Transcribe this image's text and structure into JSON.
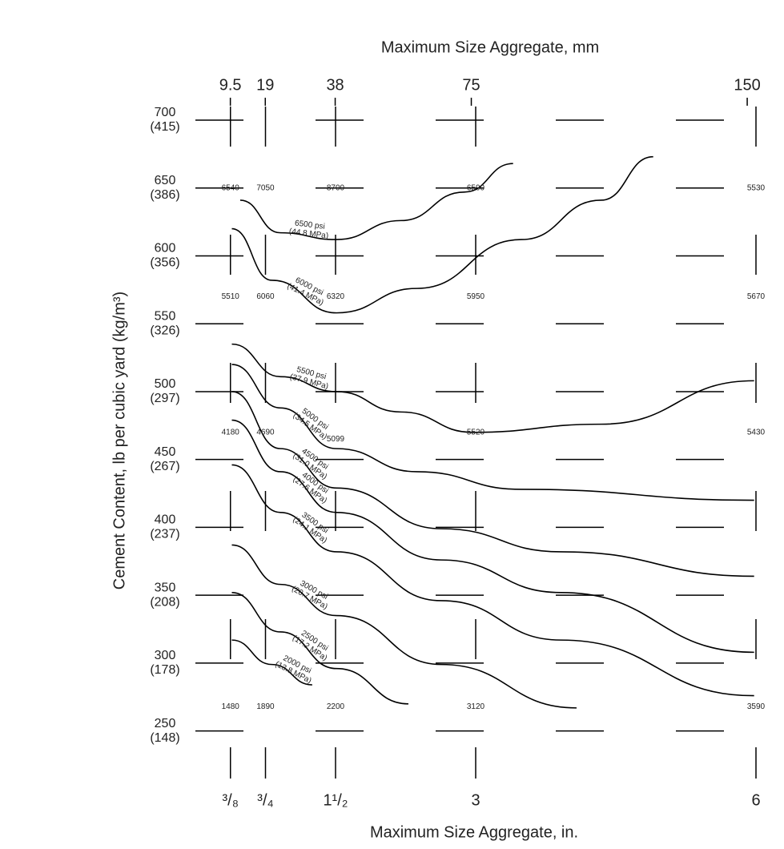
{
  "chart_data": {
    "type": "line",
    "x_label": "Maximum Size Aggregate, in.",
    "x2_label": "Maximum Size Aggregate, mm",
    "y_label": "Cement Content, lb per cubic yard (kg/m³)",
    "xlim": [
      0,
      6.3
    ],
    "xticks": [
      {
        "value": 0.375,
        "label": "³/₈"
      },
      {
        "value": 0.75,
        "label": "³/₄"
      },
      {
        "value": 1.5,
        "label": "1¹/₂"
      },
      3,
      6
    ],
    "x2lim": [
      0,
      160
    ],
    "x2ticks": [
      9.5,
      19,
      38,
      75,
      150
    ],
    "ylim": [
      215,
      710
    ],
    "yticks": [
      250,
      300,
      350,
      400,
      450,
      500,
      550,
      600,
      650,
      700
    ],
    "ytick_secondary_labels": [
      "(148)",
      "(178)",
      "(208)",
      "(237)",
      "(267)",
      "(297)",
      "(326)",
      "(356)",
      "(386)",
      "(415)"
    ],
    "grid": true,
    "color": "#000000",
    "series": [
      {
        "name": "6500 psi",
        "mpa": "(44.8 MPa)",
        "x": [
          0.48,
          0.91,
          1.51,
          2.2,
          2.88,
          3.4
        ],
        "values": [
          641,
          617,
          612,
          626,
          647,
          668
        ]
      },
      {
        "name": "6000 psi",
        "mpa": "(41.4 MPa)",
        "x": [
          0.39,
          0.82,
          1.51,
          2.37,
          3.49,
          4.34,
          4.9
        ],
        "values": [
          620,
          582,
          558,
          576,
          612,
          641,
          673
        ]
      },
      {
        "name": "5500 psi",
        "mpa": "(37.9 MPa)",
        "x": [
          0.39,
          0.91,
          1.51,
          2.2,
          2.97,
          4.34,
          5.98
        ],
        "values": [
          535,
          511,
          500,
          485,
          470,
          476,
          508
        ]
      },
      {
        "name": "5000 psi",
        "mpa": "(34.5 MPa)",
        "x": [
          0.39,
          0.91,
          1.51,
          2.37,
          3.49,
          5.98
        ],
        "values": [
          520,
          488,
          458,
          441,
          428,
          420
        ]
      },
      {
        "name": "4500 psi",
        "mpa": "(31.0 MPa)",
        "x": [
          0.39,
          0.91,
          1.51,
          2.63,
          3.91,
          5.98
        ],
        "values": [
          500,
          458,
          429,
          399,
          382,
          364
        ]
      },
      {
        "name": "4000 psi",
        "mpa": "(27.6 MPa)",
        "x": [
          0.39,
          0.91,
          1.51,
          2.63,
          3.91,
          5.98
        ],
        "values": [
          479,
          441,
          411,
          376,
          352,
          308
        ]
      },
      {
        "name": "3500 psi",
        "mpa": "(24.1 MPa)",
        "x": [
          0.39,
          0.91,
          1.51,
          2.63,
          3.91,
          5.98
        ],
        "values": [
          446,
          411,
          382,
          346,
          317,
          276
        ]
      },
      {
        "name": "3000 psi",
        "mpa": "(20.7 MPa)",
        "x": [
          0.39,
          0.91,
          1.51,
          2.63,
          4.08
        ],
        "values": [
          387,
          358,
          335,
          299,
          267
        ]
      },
      {
        "name": "2500 psi",
        "mpa": "(17.2 MPa)",
        "x": [
          0.39,
          0.91,
          1.51,
          2.28
        ],
        "values": [
          352,
          323,
          296,
          270
        ]
      },
      {
        "name": "2000 psi",
        "mpa": "(13.8 MPa)",
        "x": [
          0.39,
          0.82,
          1.25
        ],
        "values": [
          317,
          299,
          284
        ]
      }
    ],
    "annotations": [
      {
        "x": 0.375,
        "y": 650,
        "text": "6540"
      },
      {
        "x": 0.75,
        "y": 650,
        "text": "7050"
      },
      {
        "x": 1.5,
        "y": 650,
        "text": "8700"
      },
      {
        "x": 3,
        "y": 650,
        "text": "6590"
      },
      {
        "x": 6,
        "y": 650,
        "text": "5530"
      },
      {
        "x": 0.375,
        "y": 570,
        "text": "5510"
      },
      {
        "x": 0.75,
        "y": 570,
        "text": "6060"
      },
      {
        "x": 1.5,
        "y": 570,
        "text": "6320"
      },
      {
        "x": 3,
        "y": 570,
        "text": "5950"
      },
      {
        "x": 6,
        "y": 570,
        "text": "5670"
      },
      {
        "x": 0.375,
        "y": 470,
        "text": "4180"
      },
      {
        "x": 0.75,
        "y": 470,
        "text": "4690"
      },
      {
        "x": 1.5,
        "y": 465,
        "text": "5099"
      },
      {
        "x": 3,
        "y": 470,
        "text": "5520"
      },
      {
        "x": 6,
        "y": 470,
        "text": "5430"
      },
      {
        "x": 0.375,
        "y": 268,
        "text": "1480"
      },
      {
        "x": 0.75,
        "y": 268,
        "text": "1890"
      },
      {
        "x": 1.5,
        "y": 268,
        "text": "2200"
      },
      {
        "x": 3,
        "y": 268,
        "text": "3120"
      },
      {
        "x": 6,
        "y": 268,
        "text": "3590"
      }
    ]
  }
}
